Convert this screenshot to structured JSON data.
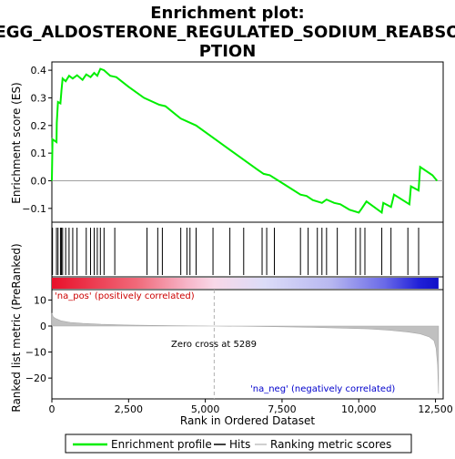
{
  "chart_data": {
    "type": "line",
    "title_line1": "Enrichment plot:",
    "title_line2": "KEGG_ALDOSTERONE_REGULATED_SODIUM_REABSOR",
    "title_line3": "PTION",
    "es_panel": {
      "ylabel": "Enrichment score (ES)",
      "ylim": [
        -0.15,
        0.43
      ],
      "yticks": [
        -0.1,
        0.0,
        0.1,
        0.2,
        0.3,
        0.4
      ],
      "ytick_labels": [
        "−0.1",
        "0.0",
        "0.1",
        "0.2",
        "0.3",
        "0.4"
      ],
      "series_name": "Enrichment profile",
      "color": "#00ee00",
      "points": [
        [
          0,
          0.0
        ],
        [
          20,
          0.15
        ],
        [
          150,
          0.14
        ],
        [
          160,
          0.21
        ],
        [
          200,
          0.285
        ],
        [
          280,
          0.28
        ],
        [
          310,
          0.325
        ],
        [
          350,
          0.37
        ],
        [
          450,
          0.36
        ],
        [
          560,
          0.38
        ],
        [
          680,
          0.37
        ],
        [
          820,
          0.382
        ],
        [
          1000,
          0.365
        ],
        [
          1120,
          0.385
        ],
        [
          1260,
          0.375
        ],
        [
          1380,
          0.39
        ],
        [
          1480,
          0.38
        ],
        [
          1580,
          0.405
        ],
        [
          1700,
          0.4
        ],
        [
          1900,
          0.38
        ],
        [
          2100,
          0.375
        ],
        [
          2500,
          0.34
        ],
        [
          3000,
          0.3
        ],
        [
          3500,
          0.275
        ],
        [
          3700,
          0.27
        ],
        [
          4200,
          0.225
        ],
        [
          4700,
          0.2
        ],
        [
          5200,
          0.16
        ],
        [
          5700,
          0.12
        ],
        [
          6200,
          0.08
        ],
        [
          6700,
          0.04
        ],
        [
          6900,
          0.025
        ],
        [
          7100,
          0.02
        ],
        [
          7600,
          -0.015
        ],
        [
          8100,
          -0.05
        ],
        [
          8300,
          -0.055
        ],
        [
          8500,
          -0.07
        ],
        [
          8800,
          -0.08
        ],
        [
          8950,
          -0.068
        ],
        [
          9200,
          -0.08
        ],
        [
          9400,
          -0.085
        ],
        [
          9700,
          -0.105
        ],
        [
          10000,
          -0.115
        ],
        [
          10100,
          -0.1
        ],
        [
          10250,
          -0.075
        ],
        [
          10750,
          -0.115
        ],
        [
          10800,
          -0.08
        ],
        [
          11050,
          -0.095
        ],
        [
          11150,
          -0.05
        ],
        [
          11650,
          -0.085
        ],
        [
          11700,
          -0.02
        ],
        [
          11950,
          -0.035
        ],
        [
          12000,
          0.05
        ],
        [
          12400,
          0.02
        ],
        [
          12550,
          0.0
        ]
      ]
    },
    "hits": [
      20,
      150,
      200,
      280,
      310,
      350,
      450,
      560,
      680,
      820,
      1120,
      1260,
      1380,
      1480,
      1580,
      1700,
      2050,
      3100,
      3450,
      3600,
      4200,
      4400,
      4500,
      4700,
      5250,
      5800,
      6250,
      6850,
      7000,
      7250,
      8100,
      8350,
      8650,
      8800,
      8950,
      9300,
      9900,
      10050,
      10200,
      10750,
      11050,
      11600,
      11950
    ],
    "rank_panel": {
      "ylabel": "Ranked list metric (PreRanked)",
      "xlabel": "Rank in Ordered Dataset",
      "ylim": [
        -28,
        14
      ],
      "yticks": [
        10,
        0,
        -10,
        -20
      ],
      "ytick_labels": [
        "10",
        "0",
        "−10",
        "−20"
      ],
      "x_ticks": [
        0,
        2500,
        5000,
        7500,
        10000,
        12500
      ],
      "x_tick_labels": [
        "0",
        "2,500",
        "5,000",
        "7,500",
        "10,000",
        "12,500"
      ],
      "xlim": [
        0,
        12750
      ],
      "total_genes": 12600,
      "zero_cross": 5289,
      "zero_cross_label": "Zero cross at 5289",
      "pos_label": "'na_pos' (positively correlated)",
      "neg_label": "'na_neg' (negatively correlated)",
      "metric_profile": [
        [
          0,
          5.0
        ],
        [
          40,
          3.6
        ],
        [
          120,
          2.9
        ],
        [
          300,
          2.0
        ],
        [
          600,
          1.4
        ],
        [
          1000,
          1.0
        ],
        [
          1600,
          0.65
        ],
        [
          2500,
          0.38
        ],
        [
          3500,
          0.2
        ],
        [
          4500,
          0.08
        ],
        [
          5289,
          0.0
        ],
        [
          6500,
          -0.12
        ],
        [
          7500,
          -0.28
        ],
        [
          8500,
          -0.5
        ],
        [
          9500,
          -0.8
        ],
        [
          10300,
          -1.1
        ],
        [
          11000,
          -1.6
        ],
        [
          11600,
          -2.3
        ],
        [
          12000,
          -3.0
        ],
        [
          12300,
          -4.2
        ],
        [
          12450,
          -5.6
        ],
        [
          12520,
          -8.5
        ],
        [
          12570,
          -15.0
        ],
        [
          12595,
          -25.0
        ],
        [
          12600,
          -26.0
        ]
      ]
    },
    "legend": [
      {
        "label": "Enrichment profile",
        "color": "#00ee00"
      },
      {
        "label": "Hits",
        "color": "#000000"
      },
      {
        "label": "Ranking metric scores",
        "color": "#c0c0c0"
      }
    ]
  }
}
